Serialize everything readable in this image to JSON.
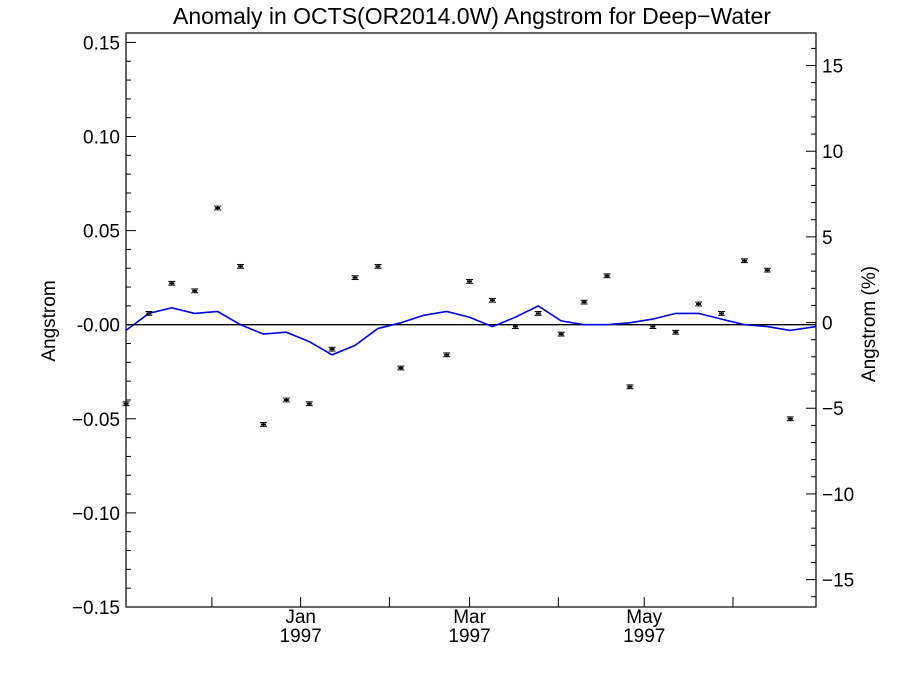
{
  "chart_data": {
    "type": "scatter",
    "title": "Anomaly in OCTS(OR2014.0W) Angstrom for Deep−Water",
    "ylabel": "Angstrom",
    "y2label": "Angstrom (%)",
    "ylim": [
      -0.15,
      0.155
    ],
    "y2lim": [
      -16.6,
      16.9
    ],
    "xlim": [
      "1996-11-01",
      "1997-06-30"
    ],
    "x_tick_labels": [
      {
        "date": "1997-01-01",
        "month": "Jan",
        "year": "1997"
      },
      {
        "date": "1997-03-01",
        "month": "Mar",
        "year": "1997"
      },
      {
        "date": "1997-05-01",
        "month": "May",
        "year": "1997"
      }
    ],
    "x_minor_ticks": [
      "1996-12-01",
      "1997-02-01",
      "1997-04-01",
      "1997-06-01"
    ],
    "y_tick_labels": [
      "0.15",
      "0.10",
      "0.05",
      "-0.00",
      "−0.05",
      "−0.10",
      "−0.15"
    ],
    "y_tick_values": [
      0.15,
      0.1,
      0.05,
      0.0,
      -0.05,
      -0.1,
      -0.15
    ],
    "y2_tick_labels": [
      "15",
      "10",
      "5",
      "0",
      "−5",
      "−10",
      "−15"
    ],
    "y2_tick_values": [
      15,
      10,
      5,
      0,
      -5,
      -10,
      -15
    ],
    "reference_line": 0,
    "colors": {
      "points": "#000000",
      "smooth": "#0000dd",
      "axes": "#000000",
      "zero_line": "#000000"
    },
    "series": [
      {
        "style": "points-with-error-bars",
        "x": [
          "1996-11-01",
          "1996-11-09",
          "1996-11-17",
          "1996-11-25",
          "1996-12-03",
          "1996-12-11",
          "1996-12-19",
          "1996-12-27",
          "1997-01-04",
          "1997-01-12",
          "1997-01-20",
          "1997-01-28",
          "1997-02-05",
          "1997-02-21",
          "1997-03-01",
          "1997-03-09",
          "1997-03-17",
          "1997-03-25",
          "1997-04-02",
          "1997-04-10",
          "1997-04-18",
          "1997-04-26",
          "1997-05-04",
          "1997-05-12",
          "1997-05-20",
          "1997-05-28",
          "1997-06-05",
          "1997-06-13",
          "1997-06-21"
        ],
        "y": [
          -0.042,
          0.006,
          0.022,
          0.018,
          0.062,
          0.031,
          -0.053,
          -0.04,
          -0.042,
          -0.013,
          0.025,
          0.031,
          -0.023,
          -0.016,
          0.023,
          0.013,
          -0.001,
          0.006,
          -0.005,
          0.012,
          0.026,
          -0.033,
          -0.001,
          -0.004,
          0.011,
          0.006,
          0.034,
          0.029,
          -0.05
        ],
        "error": 0.001
      },
      {
        "style": "line",
        "x": [
          "1996-11-01",
          "1996-11-09",
          "1996-11-17",
          "1996-11-25",
          "1996-12-03",
          "1996-12-11",
          "1996-12-19",
          "1996-12-27",
          "1997-01-04",
          "1997-01-12",
          "1997-01-20",
          "1997-01-28",
          "1997-02-05",
          "1997-02-13",
          "1997-02-21",
          "1997-03-01",
          "1997-03-09",
          "1997-03-17",
          "1997-03-25",
          "1997-04-02",
          "1997-04-10",
          "1997-04-18",
          "1997-04-26",
          "1997-05-04",
          "1997-05-12",
          "1997-05-20",
          "1997-05-28",
          "1997-06-05",
          "1997-06-13",
          "1997-06-21",
          "1997-06-30"
        ],
        "y": [
          -0.003,
          0.006,
          0.009,
          0.006,
          0.007,
          0.0,
          -0.005,
          -0.004,
          -0.009,
          -0.016,
          -0.011,
          -0.002,
          0.001,
          0.005,
          0.007,
          0.004,
          -0.001,
          0.004,
          0.01,
          0.002,
          0.0,
          0.0,
          0.001,
          0.003,
          0.006,
          0.006,
          0.003,
          0.0,
          -0.001,
          -0.003,
          -0.001
        ]
      }
    ]
  }
}
